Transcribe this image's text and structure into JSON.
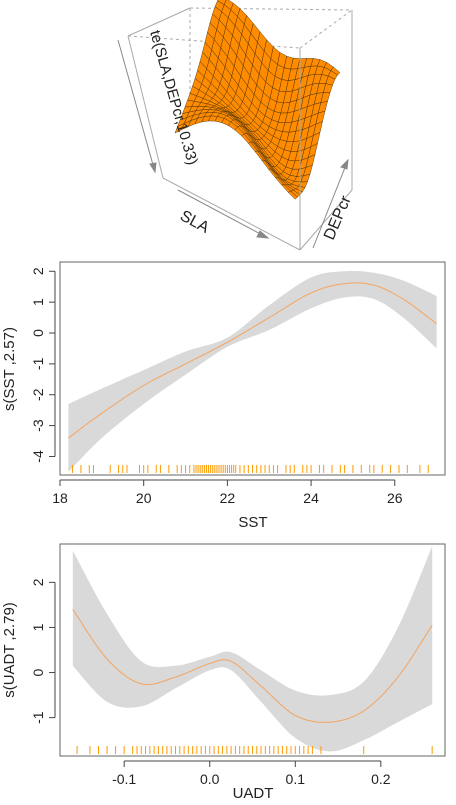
{
  "chart_data": [
    {
      "type": "surface",
      "zlabel": "te(SLA,DEPcr,10.33)",
      "xlabel": "SLA",
      "ylabel": "DEPcr",
      "colors": {
        "surface": "#FF8C00",
        "mesh": "#3a2400",
        "box": "#aaaaaa"
      }
    },
    {
      "type": "line",
      "xlabel": "SST",
      "ylabel": "s(SST ,2.57)",
      "xlim": [
        18,
        27.2
      ],
      "ylim": [
        -4.6,
        2.3
      ],
      "x_ticks": [
        18,
        20,
        22,
        24,
        26
      ],
      "y_ticks": [
        2,
        1,
        0,
        -1,
        -2,
        -3,
        -4
      ],
      "x": [
        18.2,
        19.0,
        20.0,
        21.0,
        22.0,
        23.0,
        24.0,
        24.8,
        25.5,
        26.2,
        27.0
      ],
      "fit": [
        -3.4,
        -2.6,
        -1.7,
        -1.0,
        -0.3,
        0.5,
        1.3,
        1.6,
        1.55,
        1.1,
        0.3
      ],
      "upper": [
        -2.3,
        -1.8,
        -1.2,
        -0.6,
        -0.15,
        0.9,
        1.8,
        2.0,
        1.95,
        1.7,
        1.2
      ],
      "lower": [
        -4.5,
        -3.4,
        -2.3,
        -1.35,
        -0.45,
        0.1,
        0.8,
        1.15,
        1.1,
        0.5,
        -0.5
      ],
      "rug": [
        18.3,
        18.5,
        18.7,
        18.8,
        19.2,
        19.4,
        19.5,
        19.6,
        19.9,
        20.0,
        20.1,
        20.3,
        20.4,
        20.6,
        20.8,
        20.9,
        21.0,
        21.1,
        21.2,
        21.25,
        21.3,
        21.35,
        21.4,
        21.45,
        21.5,
        21.55,
        21.6,
        21.65,
        21.7,
        21.75,
        21.8,
        21.85,
        21.9,
        21.95,
        22.0,
        22.05,
        22.1,
        22.15,
        22.2,
        22.3,
        22.4,
        22.5,
        22.6,
        22.7,
        22.8,
        22.9,
        23.0,
        23.1,
        23.2,
        23.4,
        23.5,
        23.6,
        23.8,
        23.9,
        24.0,
        24.2,
        24.3,
        24.5,
        24.7,
        24.8,
        25.0,
        25.2,
        25.4,
        25.5,
        25.7,
        25.9,
        26.1,
        26.3,
        26.6,
        26.8
      ],
      "colors": {
        "band": "#d9d9d9",
        "line": "#F4A460",
        "rug": "#FF9900"
      }
    },
    {
      "type": "line",
      "xlabel": "UADT",
      "ylabel": "s(UADT ,2.79)",
      "xlim": [
        -0.175,
        0.275
      ],
      "ylim": [
        -1.85,
        2.85
      ],
      "x_ticks": [
        -0.1,
        0.0,
        0.1,
        0.2
      ],
      "x_tick_labels": [
        "-0.1",
        "0.0",
        "0.1",
        "0.2"
      ],
      "y_ticks": [
        2,
        1,
        0,
        -1
      ],
      "x": [
        -0.16,
        -0.12,
        -0.08,
        -0.04,
        0.0,
        0.025,
        0.06,
        0.1,
        0.14,
        0.18,
        0.22,
        0.26
      ],
      "fit": [
        1.4,
        0.3,
        -0.25,
        -0.1,
        0.2,
        0.25,
        -0.3,
        -0.95,
        -1.1,
        -0.85,
        -0.1,
        1.05
      ],
      "upper": [
        2.7,
        1.3,
        0.25,
        0.15,
        0.35,
        0.45,
        0.05,
        -0.4,
        -0.5,
        -0.2,
        1.0,
        2.8
      ],
      "lower": [
        0.15,
        -0.65,
        -0.75,
        -0.35,
        0.05,
        0.05,
        -0.65,
        -1.45,
        -1.75,
        -1.5,
        -1.1,
        -0.7
      ],
      "rug": [
        -0.155,
        -0.14,
        -0.13,
        -0.12,
        -0.11,
        -0.1,
        -0.09,
        -0.085,
        -0.08,
        -0.075,
        -0.07,
        -0.065,
        -0.06,
        -0.055,
        -0.05,
        -0.045,
        -0.04,
        -0.035,
        -0.03,
        -0.025,
        -0.02,
        -0.015,
        -0.01,
        -0.005,
        0.0,
        0.005,
        0.01,
        0.015,
        0.02,
        0.025,
        0.03,
        0.035,
        0.04,
        0.045,
        0.05,
        0.055,
        0.06,
        0.065,
        0.07,
        0.075,
        0.08,
        0.085,
        0.09,
        0.095,
        0.1,
        0.105,
        0.11,
        0.115,
        0.12,
        0.13,
        0.18,
        0.26
      ],
      "colors": {
        "band": "#d9d9d9",
        "line": "#F4A460",
        "rug": "#FF9900"
      }
    }
  ]
}
